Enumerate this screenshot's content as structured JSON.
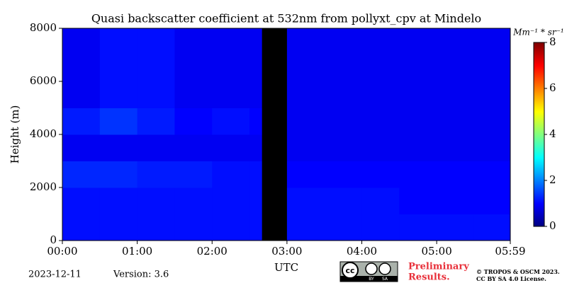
{
  "chart_data": {
    "type": "heatmap",
    "title": "Quasi backscatter coefficient at 532nm from pollyxt_cpv at Mindelo",
    "y_label": "Height (m)",
    "x_label": "UTC",
    "x_edges": [
      0,
      30,
      60,
      90,
      120,
      150,
      160,
      180,
      210,
      240,
      270,
      300,
      330,
      359
    ],
    "y_edges": [
      0,
      1000,
      2000,
      3000,
      4000,
      5000,
      8000
    ],
    "z": [
      [
        1.1,
        1.1,
        1.1,
        1.1,
        1.1,
        1.1,
        null,
        1.1,
        1.1,
        1.1,
        1.1,
        1.1,
        1.1
      ],
      [
        1.1,
        1.1,
        1.1,
        1.1,
        1.1,
        1.1,
        null,
        1.1,
        1.1,
        1.1,
        1.0,
        1.0,
        1.0
      ],
      [
        1.3,
        1.3,
        1.2,
        1.2,
        1.1,
        1.1,
        null,
        1.0,
        1.0,
        1.0,
        1.0,
        1.0,
        1.0
      ],
      [
        0.9,
        0.9,
        0.9,
        0.9,
        0.9,
        0.9,
        null,
        0.9,
        0.9,
        0.9,
        0.9,
        0.9,
        0.9
      ],
      [
        1.2,
        1.4,
        1.2,
        1.0,
        1.1,
        1.0,
        null,
        0.9,
        0.9,
        0.9,
        0.9,
        0.9,
        0.9
      ],
      [
        0.9,
        1.1,
        1.1,
        0.9,
        0.9,
        0.9,
        null,
        0.9,
        0.9,
        0.9,
        0.9,
        0.9,
        0.9
      ]
    ],
    "xlim": [
      0,
      359
    ],
    "xticks": [
      {
        "value": 0,
        "label": "00:00"
      },
      {
        "value": 60,
        "label": "01:00"
      },
      {
        "value": 120,
        "label": "02:00"
      },
      {
        "value": 180,
        "label": "03:00"
      },
      {
        "value": 240,
        "label": "04:00"
      },
      {
        "value": 300,
        "label": "05:00"
      },
      {
        "value": 359,
        "label": "05:59"
      }
    ],
    "ylim": [
      0,
      8000
    ],
    "yticks": [
      0,
      2000,
      4000,
      6000,
      8000
    ],
    "colorbar_label": "Mm⁻¹ * sr⁻¹",
    "zlim": [
      0,
      8
    ],
    "zticks": [
      0,
      2,
      4,
      6,
      8
    ],
    "date": "2023-12-11",
    "version": "Version: 3.6",
    "badge": [
      "cc",
      "BY",
      "SA"
    ],
    "preliminary": [
      "Preliminary",
      "Results."
    ],
    "copyright": [
      "© TROPOS & OSCM 2023.",
      "CC BY SA 4.0 License."
    ]
  }
}
